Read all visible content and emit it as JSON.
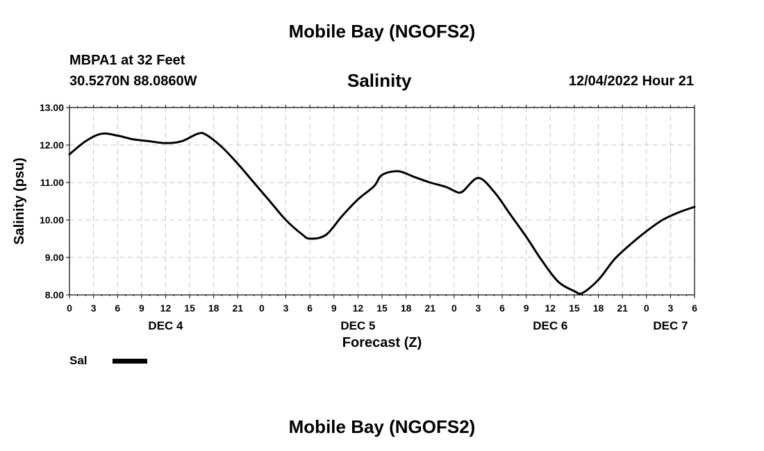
{
  "header": {
    "title": "Mobile Bay (NGOFS2)",
    "station": "MBPA1 at 32 Feet",
    "coords": "30.5270N  88.0860W",
    "chart_title": "Salinity",
    "timestamp": "12/04/2022 Hour 21"
  },
  "legend": {
    "label": "Sal"
  },
  "footer": {
    "title": "Mobile Bay (NGOFS2)"
  },
  "chart_data": {
    "type": "line",
    "title": "Salinity",
    "xlabel": "Forecast (Z)",
    "ylabel": "Salinity (psu)",
    "ylim": [
      8.0,
      13.0
    ],
    "xlim": [
      "2022-12-04T00:00Z",
      "2022-12-07T06:00Z"
    ],
    "y_ticks": [
      "8.00",
      "9.00",
      "10.00",
      "11.00",
      "12.00",
      "13.00"
    ],
    "x_tick_labels": [
      "0",
      "3",
      "6",
      "9",
      "12",
      "15",
      "18",
      "21",
      "0",
      "3",
      "6",
      "9",
      "12",
      "15",
      "18",
      "21",
      "0",
      "3",
      "6",
      "9",
      "12",
      "15",
      "18",
      "21",
      "0",
      "3",
      "6"
    ],
    "date_labels": [
      {
        "label": "DEC 4",
        "time": "2022-12-04T12:00Z"
      },
      {
        "label": "DEC 5",
        "time": "2022-12-05T12:00Z"
      },
      {
        "label": "DEC 6",
        "time": "2022-12-06T12:00Z"
      },
      {
        "label": "DEC 7",
        "time": "2022-12-07T03:00Z"
      }
    ],
    "grid": true,
    "legend_position": "bottom-left",
    "line_color": "#000000",
    "series": [
      {
        "name": "Sal",
        "x": [
          "2022-12-04T00:00Z",
          "2022-12-04T02:00Z",
          "2022-12-04T04:00Z",
          "2022-12-04T06:00Z",
          "2022-12-04T08:00Z",
          "2022-12-04T10:00Z",
          "2022-12-04T12:00Z",
          "2022-12-04T14:00Z",
          "2022-12-04T16:00Z",
          "2022-12-04T17:00Z",
          "2022-12-04T19:00Z",
          "2022-12-04T21:00Z",
          "2022-12-04T23:00Z",
          "2022-12-05T01:00Z",
          "2022-12-05T03:00Z",
          "2022-12-05T05:00Z",
          "2022-12-05T06:00Z",
          "2022-12-05T08:00Z",
          "2022-12-05T10:00Z",
          "2022-12-05T12:00Z",
          "2022-12-05T14:00Z",
          "2022-12-05T15:00Z",
          "2022-12-05T17:00Z",
          "2022-12-05T19:00Z",
          "2022-12-05T21:00Z",
          "2022-12-05T23:00Z",
          "2022-12-06T00:00Z",
          "2022-12-06T01:00Z",
          "2022-12-06T03:00Z",
          "2022-12-06T05:00Z",
          "2022-12-06T07:00Z",
          "2022-12-06T09:00Z",
          "2022-12-06T11:00Z",
          "2022-12-06T13:00Z",
          "2022-12-06T15:00Z",
          "2022-12-06T16:00Z",
          "2022-12-06T18:00Z",
          "2022-12-06T20:00Z",
          "2022-12-06T22:00Z",
          "2022-12-07T00:00Z",
          "2022-12-07T02:00Z",
          "2022-12-07T04:00Z",
          "2022-12-07T06:00Z"
        ],
        "values": [
          11.75,
          12.1,
          12.3,
          12.25,
          12.15,
          12.1,
          12.05,
          12.1,
          12.3,
          12.28,
          11.95,
          11.5,
          11.0,
          10.5,
          10.0,
          9.62,
          9.5,
          9.6,
          10.1,
          10.55,
          10.9,
          11.2,
          11.3,
          11.15,
          11.0,
          10.88,
          10.78,
          10.75,
          11.12,
          10.75,
          10.15,
          9.55,
          8.9,
          8.35,
          8.1,
          8.05,
          8.4,
          8.95,
          9.35,
          9.7,
          10.0,
          10.2,
          10.35
        ]
      }
    ]
  }
}
